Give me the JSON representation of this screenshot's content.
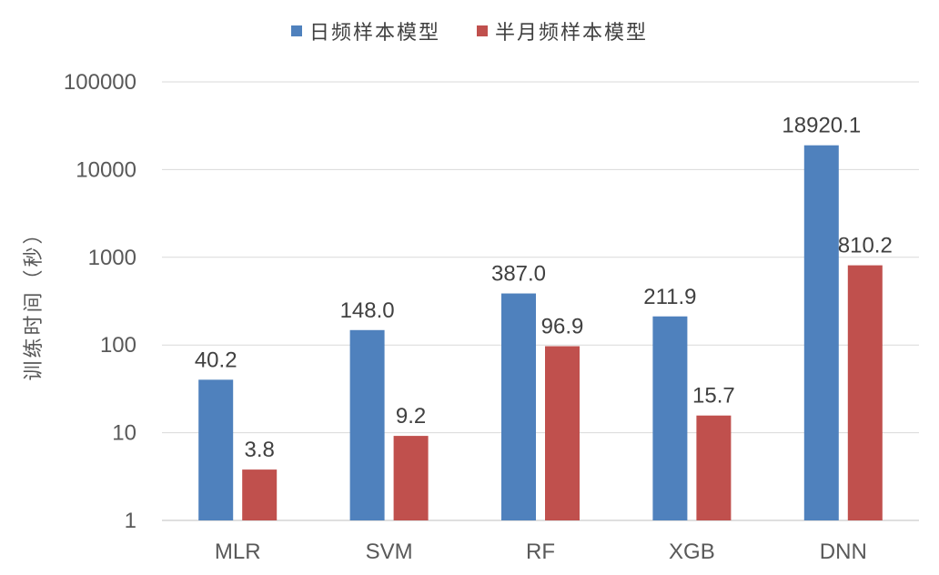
{
  "chart_data": {
    "type": "bar",
    "scale": "log",
    "ylabel": "训练时间（秒）",
    "ylim": [
      1,
      100000
    ],
    "y_ticks": [
      "1",
      "10",
      "100",
      "1000",
      "10000",
      "100000"
    ],
    "grid": true,
    "legend_position": "top-center",
    "categories": [
      "MLR",
      "SVM",
      "RF",
      "XGB",
      "DNN"
    ],
    "series": [
      {
        "name": "日频样本模型",
        "color": "#4f81bd",
        "values": [
          40.2,
          148.0,
          387.0,
          211.9,
          18920.1
        ],
        "labels": [
          "40.2",
          "148.0",
          "387.0",
          "211.9",
          "18920.1"
        ]
      },
      {
        "name": "半月频样本模型",
        "color": "#c0504d",
        "values": [
          3.8,
          9.2,
          96.9,
          15.7,
          810.2
        ],
        "labels": [
          "3.8",
          "9.2",
          "96.9",
          "15.7",
          "810.2"
        ]
      }
    ]
  }
}
